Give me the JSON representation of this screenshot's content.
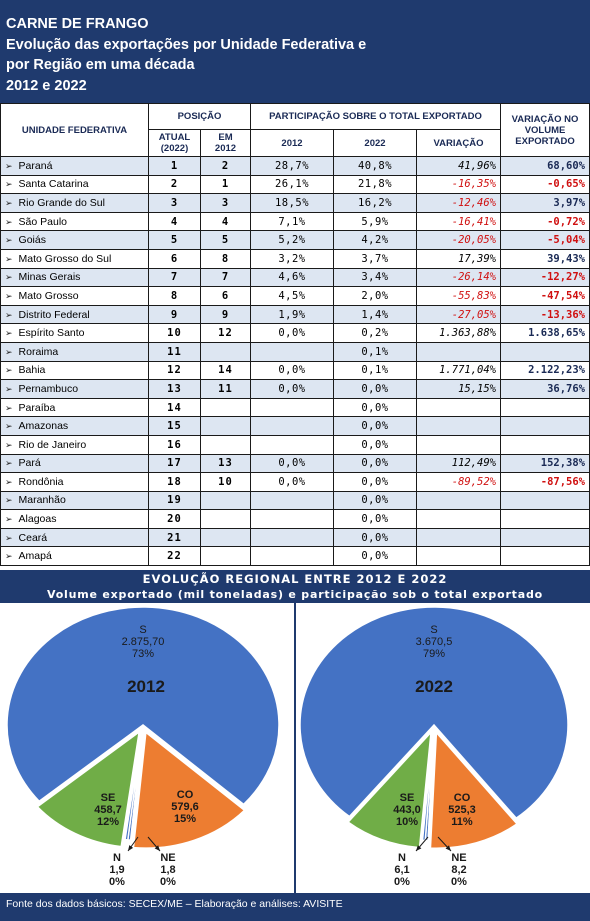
{
  "header": {
    "line1": "CARNE DE FRANGO",
    "line2": "Evolução das exportações por Unidade Federativa e",
    "line3": "por Região em uma década",
    "line4": "2012 e 2022"
  },
  "table": {
    "col_uf": "UNIDADE FEDERATIVA",
    "col_posicao": "POSIÇÃO",
    "col_atual": "ATUAL (2022)",
    "col_em2012": "EM 2012",
    "col_participacao": "PARTICIPAÇÃO SOBRE O TOTAL EXPORTADO",
    "col_2012": "2012",
    "col_2022": "2022",
    "col_variacao": "VARIAÇÃO",
    "col_vol": "VARIAÇÃO NO VOLUME EXPORTADO",
    "arrow": "➢",
    "rows": [
      {
        "uf": "Paraná",
        "atual": "1",
        "em2012": "2",
        "p2012": "28,7%",
        "p2022": "40,8%",
        "var": "41,96%",
        "vol": "68,60%",
        "neg": false
      },
      {
        "uf": "Santa Catarina",
        "atual": "2",
        "em2012": "1",
        "p2012": "26,1%",
        "p2022": "21,8%",
        "var": "-16,35%",
        "vol": "-0,65%",
        "neg": true
      },
      {
        "uf": "Rio Grande do Sul",
        "atual": "3",
        "em2012": "3",
        "p2012": "18,5%",
        "p2022": "16,2%",
        "var": "-12,46%",
        "vol": "3,97%",
        "neg": true,
        "volneg": false
      },
      {
        "uf": "São Paulo",
        "atual": "4",
        "em2012": "4",
        "p2012": "7,1%",
        "p2022": "5,9%",
        "var": "-16,41%",
        "vol": "-0,72%",
        "neg": true
      },
      {
        "uf": "Goiás",
        "atual": "5",
        "em2012": "5",
        "p2012": "5,2%",
        "p2022": "4,2%",
        "var": "-20,05%",
        "vol": "-5,04%",
        "neg": true
      },
      {
        "uf": "Mato Grosso do Sul",
        "atual": "6",
        "em2012": "8",
        "p2012": "3,2%",
        "p2022": "3,7%",
        "var": "17,39%",
        "vol": "39,43%",
        "neg": false
      },
      {
        "uf": "Minas Gerais",
        "atual": "7",
        "em2012": "7",
        "p2012": "4,6%",
        "p2022": "3,4%",
        "var": "-26,14%",
        "vol": "-12,27%",
        "neg": true
      },
      {
        "uf": "Mato Grosso",
        "atual": "8",
        "em2012": "6",
        "p2012": "4,5%",
        "p2022": "2,0%",
        "var": "-55,83%",
        "vol": "-47,54%",
        "neg": true
      },
      {
        "uf": "Distrito Federal",
        "atual": "9",
        "em2012": "9",
        "p2012": "1,9%",
        "p2022": "1,4%",
        "var": "-27,05%",
        "vol": "-13,36%",
        "neg": true
      },
      {
        "uf": "Espírito Santo",
        "atual": "10",
        "em2012": "12",
        "p2012": "0,0%",
        "p2022": "0,2%",
        "var": "1.363,88%",
        "vol": "1.638,65%",
        "neg": false
      },
      {
        "uf": "Roraima",
        "atual": "11",
        "em2012": "",
        "p2012": "",
        "p2022": "0,1%",
        "var": "",
        "vol": "",
        "neg": false
      },
      {
        "uf": "Bahia",
        "atual": "12",
        "em2012": "14",
        "p2012": "0,0%",
        "p2022": "0,1%",
        "var": "1.771,04%",
        "vol": "2.122,23%",
        "neg": false
      },
      {
        "uf": "Pernambuco",
        "atual": "13",
        "em2012": "11",
        "p2012": "0,0%",
        "p2022": "0,0%",
        "var": "15,15%",
        "vol": "36,76%",
        "neg": false
      },
      {
        "uf": "Paraíba",
        "atual": "14",
        "em2012": "",
        "p2012": "",
        "p2022": "0,0%",
        "var": "",
        "vol": "",
        "neg": false
      },
      {
        "uf": "Amazonas",
        "atual": "15",
        "em2012": "",
        "p2012": "",
        "p2022": "0,0%",
        "var": "",
        "vol": "",
        "neg": false
      },
      {
        "uf": "Rio de Janeiro",
        "atual": "16",
        "em2012": "",
        "p2012": "",
        "p2022": "0,0%",
        "var": "",
        "vol": "",
        "neg": false
      },
      {
        "uf": "Pará",
        "atual": "17",
        "em2012": "13",
        "p2012": "0,0%",
        "p2022": "0,0%",
        "var": "112,49%",
        "vol": "152,38%",
        "neg": false
      },
      {
        "uf": "Rondônia",
        "atual": "18",
        "em2012": "10",
        "p2012": "0,0%",
        "p2022": "0,0%",
        "var": "-89,52%",
        "vol": "-87,56%",
        "neg": true
      },
      {
        "uf": "Maranhão",
        "atual": "19",
        "em2012": "",
        "p2012": "",
        "p2022": "0,0%",
        "var": "",
        "vol": "",
        "neg": false
      },
      {
        "uf": "Alagoas",
        "atual": "20",
        "em2012": "",
        "p2012": "",
        "p2022": "0,0%",
        "var": "",
        "vol": "",
        "neg": false
      },
      {
        "uf": "Ceará",
        "atual": "21",
        "em2012": "",
        "p2012": "",
        "p2022": "0,0%",
        "var": "",
        "vol": "",
        "neg": false
      },
      {
        "uf": "Amapá",
        "atual": "22",
        "em2012": "",
        "p2012": "",
        "p2022": "0,0%",
        "var": "",
        "vol": "",
        "neg": false
      }
    ]
  },
  "band": {
    "title": "EVOLUÇÃO REGIONAL ENTRE 2012 E 2022",
    "subtitle": "Volume exportado (mil toneladas) e participação sob o total exportado"
  },
  "chart_data": [
    {
      "type": "pie",
      "title": "2012",
      "slices": [
        {
          "region": "S",
          "value": "2.875,70",
          "pct": "73%",
          "share": 0.7315,
          "color": "#4472c4"
        },
        {
          "region": "CO",
          "value": "579,6",
          "pct": "15%",
          "share": 0.1474,
          "color": "#ed7d31"
        },
        {
          "region": "NE",
          "value": "1,8",
          "pct": "0%",
          "share": 0.0005,
          "color": "#4472c4"
        },
        {
          "region": "N",
          "value": "1,9",
          "pct": "0%",
          "share": 0.0005,
          "color": "#4472c4"
        },
        {
          "region": "SE",
          "value": "458,7",
          "pct": "12%",
          "share": 0.1167,
          "color": "#70ad47"
        }
      ]
    },
    {
      "type": "pie",
      "title": "2022",
      "slices": [
        {
          "region": "S",
          "value": "3.670,5",
          "pct": "79%",
          "share": 0.7857,
          "color": "#4472c4"
        },
        {
          "region": "CO",
          "value": "525,3",
          "pct": "11%",
          "share": 0.1124,
          "color": "#ed7d31"
        },
        {
          "region": "NE",
          "value": "8,2",
          "pct": "0%",
          "share": 0.0018,
          "color": "#4472c4"
        },
        {
          "region": "N",
          "value": "6,1",
          "pct": "0%",
          "share": 0.0013,
          "color": "#4472c4"
        },
        {
          "region": "SE",
          "value": "443,0",
          "pct": "10%",
          "share": 0.0948,
          "color": "#70ad47"
        }
      ]
    }
  ],
  "colors": {
    "header": "#1f3a6e",
    "negative": "#d01010",
    "row_alt": "#dde6f2",
    "south": "#4472c4",
    "center_west": "#ed7d31",
    "southeast": "#70ad47"
  },
  "footer": {
    "text": "Fonte dos dados básicos: SECEX/ME – Elaboração e análises: AVISITE"
  }
}
